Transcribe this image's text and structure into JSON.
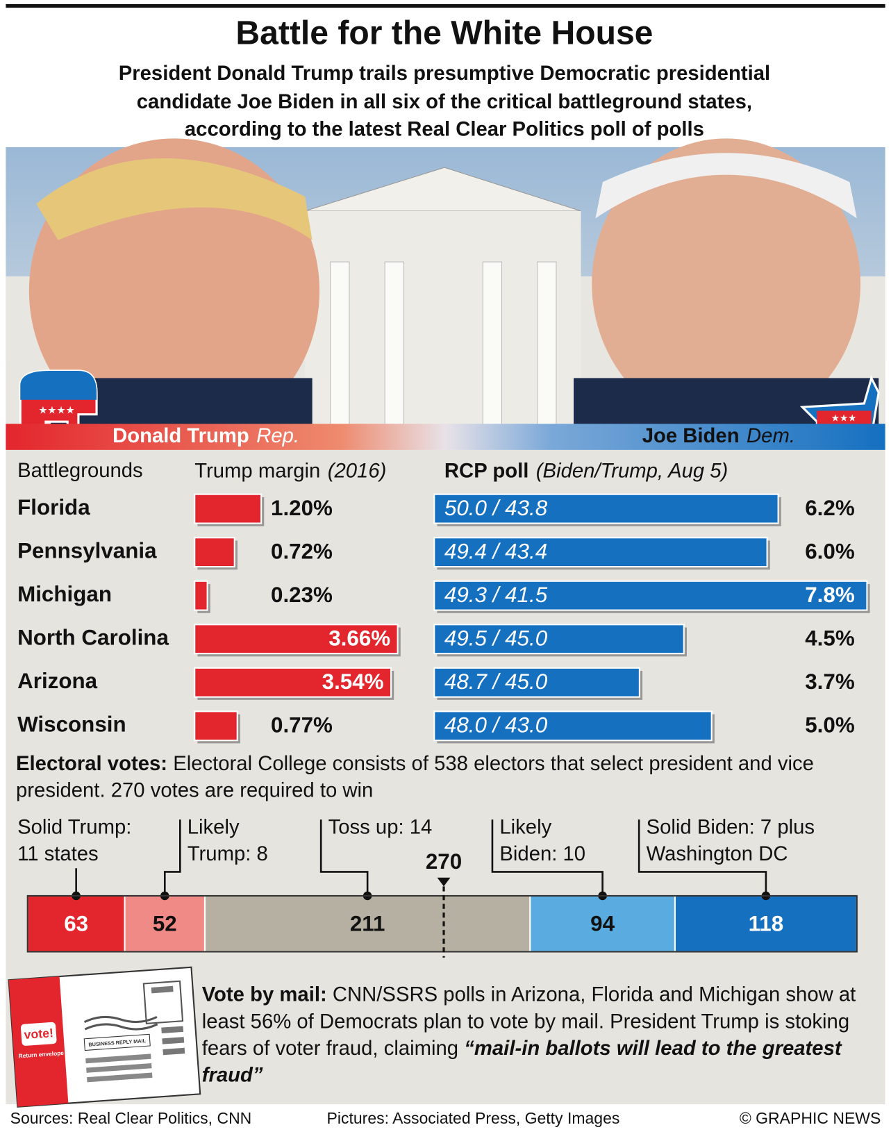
{
  "header": {
    "title": "Battle for the White House",
    "subtitle": [
      "President Donald Trump trails presumptive Democratic presidential",
      "candidate Joe Biden in all six of the critical battleground states,",
      "according to the latest Real Clear Politics poll of polls"
    ]
  },
  "candidates": [
    {
      "name": "Donald Trump",
      "party": "Rep."
    },
    {
      "name": "Joe Biden",
      "party": "Dem."
    }
  ],
  "columns": {
    "states": "Battlegrounds",
    "margin": "Trump margin",
    "margin_note": "(2016)",
    "poll": "RCP poll",
    "poll_note": "(Biden/Trump, Aug 5)"
  },
  "chart_data": [
    {
      "type": "bar",
      "orientation": "horizontal",
      "categories": [
        "Florida",
        "Pennsylvania",
        "Michigan",
        "North Carolina",
        "Arizona",
        "Wisconsin"
      ],
      "values": [
        1.2,
        0.72,
        0.23,
        3.66,
        3.54,
        0.77
      ],
      "value_labels": [
        "1.20%",
        "0.72%",
        "0.23%",
        "3.66%",
        "3.54%",
        "0.77%"
      ],
      "color": "#e3262d"
    },
    {
      "type": "bar",
      "orientation": "horizontal",
      "values": [
        6.2,
        6.0,
        7.8,
        4.5,
        3.7,
        5.0
      ],
      "value_labels": [
        "6.2%",
        "6.0%",
        "7.8%",
        "4.5%",
        "3.7%",
        "5.0%"
      ],
      "poll_labels": [
        "50.0 / 43.8",
        "49.4 / 43.4",
        "49.3 / 41.5",
        "49.5 / 45.0",
        "48.7 / 45.0",
        "48.0 / 43.0"
      ],
      "color": "#1570c0"
    },
    {
      "type": "stacked-bar",
      "title": "Electoral votes:",
      "description": "Electoral College consists of 538 electors that select president and vice president. 270 votes are required to win",
      "categories": [
        [
          "Solid Trump:",
          "11 states"
        ],
        [
          "Likely",
          "Trump: 8"
        ],
        [
          "Toss up: 14"
        ],
        [
          "Likely",
          "Biden: 10"
        ],
        [
          "Solid Biden: 7 plus",
          "Washington DC"
        ]
      ],
      "values": [
        63,
        52,
        211,
        94,
        118
      ],
      "colors": [
        "#e3262d",
        "#f08a86",
        "#b5b0a2",
        "#5aace0",
        "#1570c0"
      ],
      "threshold": 270
    }
  ],
  "vote_by_mail": {
    "lead": "Vote by mail:",
    "text": "CNN/SSRS polls in Arizona, Florida and Michigan show at least 56% of Democrats plan to vote by mail. President Trump is stoking fears of voter fraud, claiming",
    "quote": "“mail-in ballots will lead to the greatest fraud”"
  },
  "envelope": {
    "stamp": "vote!",
    "note": "Return envelope",
    "address": "BUSINESS REPLY MAIL"
  },
  "footer": {
    "sources": "Sources: Real Clear Politics, CNN",
    "pictures": "Pictures: Associated Press, Getty Images",
    "credit": "© GRAPHIC NEWS"
  }
}
